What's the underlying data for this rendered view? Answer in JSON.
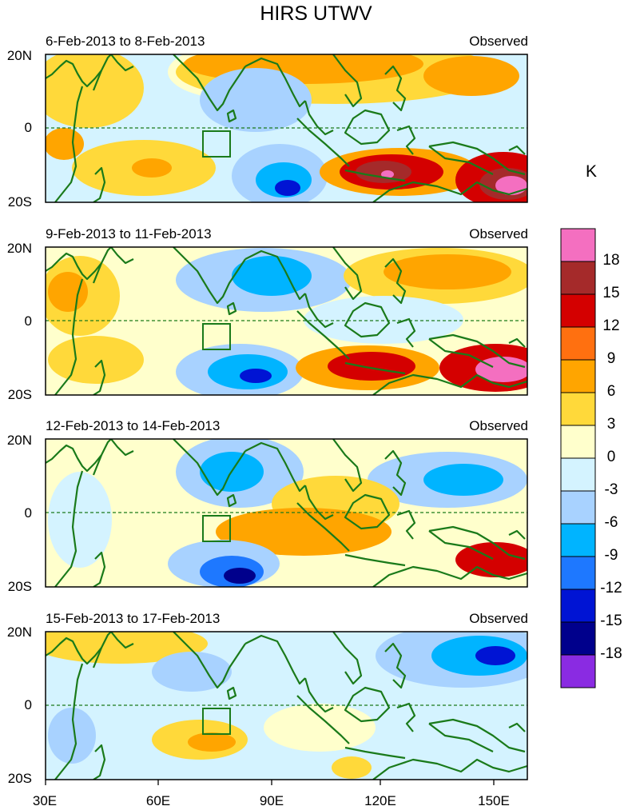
{
  "title": "HIRS UTWV",
  "panels": [
    {
      "period": "6-Feb-2013 to 8-Feb-2013",
      "label": "Observed"
    },
    {
      "period": "9-Feb-2013 to 11-Feb-2013",
      "label": "Observed"
    },
    {
      "period": "12-Feb-2013 to 14-Feb-2013",
      "label": "Observed"
    },
    {
      "period": "15-Feb-2013 to 17-Feb-2013",
      "label": "Observed"
    }
  ],
  "y_ticks": [
    "20N",
    "0",
    "20S"
  ],
  "x_ticks": [
    "30E",
    "60E",
    "90E",
    "120E",
    "150E"
  ],
  "colorbar": {
    "unit": "K",
    "labels": [
      "18",
      "15",
      "12",
      "9",
      "6",
      "3",
      "0",
      "-3",
      "-6",
      "-9",
      "-12",
      "-15",
      "-18"
    ],
    "colors": [
      "#f46fc0",
      "#a52a2a",
      "#d40000",
      "#ff7010",
      "#ffa500",
      "#ffd93a",
      "#ffffcc",
      "#d4f3ff",
      "#a8d2ff",
      "#00b4ff",
      "#1e78ff",
      "#0014d4",
      "#00008c",
      "#8a2be2"
    ]
  }
}
